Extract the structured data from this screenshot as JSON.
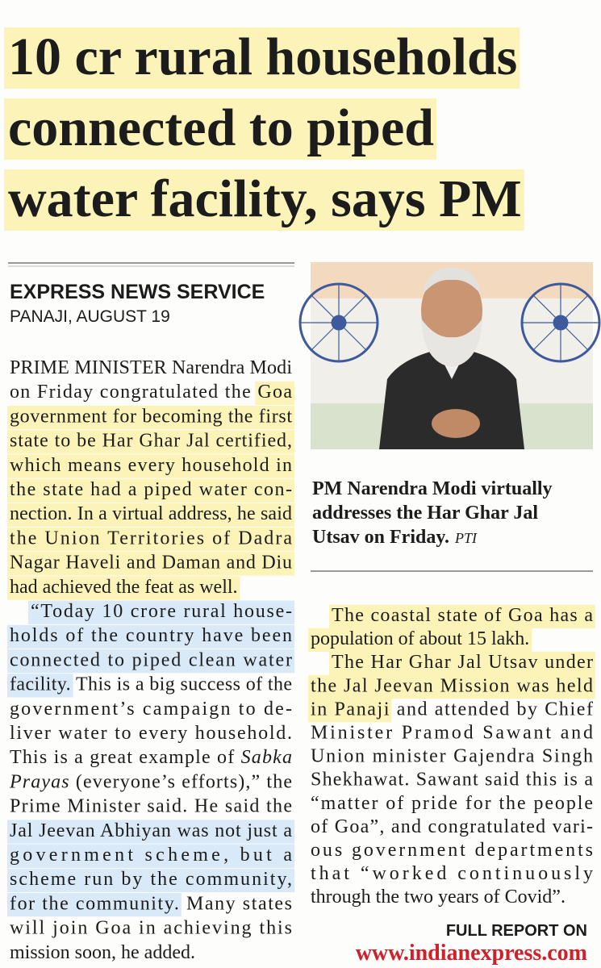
{
  "headline": {
    "lines": [
      "10 cr rural households",
      "connected to piped",
      "water facility, says PM"
    ],
    "highlight": "yellow"
  },
  "byline": "EXPRESS NEWS SERVICE",
  "dateline": "PANAJI, AUGUST 19",
  "body": {
    "left": [
      {
        "indent": false,
        "lines": [
          [
            {
              "text": "PRIME MINISTER Narendra Modi"
            }
          ],
          [
            {
              "text": "on Friday congratulated the "
            },
            {
              "text": "Goa",
              "highlight": "yellow"
            }
          ],
          [
            {
              "text": "government for becoming the first",
              "highlight": "yellow"
            }
          ],
          [
            {
              "text": "state to be Har Ghar Jal certified,",
              "highlight": "yellow"
            }
          ],
          [
            {
              "text": "which means every household in",
              "highlight": "yellow"
            }
          ],
          [
            {
              "text": "the state had a piped water con-",
              "highlight": "yellow"
            }
          ],
          [
            {
              "text": "nection. In a virtual address, he said",
              "highlight": "yellow"
            }
          ],
          [
            {
              "text": "the Union Territories of Dadra",
              "highlight": "yellow"
            }
          ],
          [
            {
              "text": "Nagar Haveli and Daman and Diu",
              "highlight": "yellow"
            }
          ],
          [
            {
              "text": "had achieved the feat as well.",
              "highlight": "yellow"
            }
          ]
        ]
      },
      {
        "indent": true,
        "lines": [
          [
            {
              "text": "“Today 10 crore rural house-",
              "highlight": "blue"
            }
          ],
          [
            {
              "text": "holds of the country have been",
              "highlight": "blue"
            }
          ],
          [
            {
              "text": "connected to piped clean water",
              "highlight": "blue"
            }
          ],
          [
            {
              "text": "facility.",
              "highlight": "blue"
            },
            {
              "text": " This is a big success of the"
            }
          ],
          [
            {
              "text": "government’s campaign to de-"
            }
          ],
          [
            {
              "text": "liver water to every household."
            }
          ],
          [
            {
              "text": "This is a great example of "
            },
            {
              "text": "Sabka",
              "italic": true
            }
          ],
          [
            {
              "text": "Prayas",
              "italic": true
            },
            {
              "text": " (everyone’s efforts),” the"
            }
          ],
          [
            {
              "text": "Prime Minister said. He said the"
            }
          ],
          [
            {
              "text": "Jal Jeevan Abhiyan was not just a",
              "highlight": "blue"
            }
          ],
          [
            {
              "text": "government scheme, but a",
              "highlight": "blue"
            }
          ],
          [
            {
              "text": "scheme run by the community,",
              "highlight": "blue"
            }
          ],
          [
            {
              "text": "for the community.",
              "highlight": "blue"
            },
            {
              "text": " Many states"
            }
          ],
          [
            {
              "text": "will join Goa in achieving this"
            }
          ],
          [
            {
              "text": "mission soon, he added."
            }
          ]
        ]
      }
    ],
    "right": [
      {
        "indent": true,
        "lines": [
          [
            {
              "text": "The coastal state of Goa has a",
              "highlight": "yellow"
            }
          ],
          [
            {
              "text": "population of about 15 lakh.",
              "highlight": "yellow"
            }
          ]
        ]
      },
      {
        "indent": true,
        "lines": [
          [
            {
              "text": "The Har Ghar Jal Utsav under",
              "highlight": "yellow"
            }
          ],
          [
            {
              "text": "the Jal Jeevan Mission was held",
              "highlight": "yellow"
            }
          ],
          [
            {
              "text": "in Panaji",
              "highlight": "yellow"
            },
            {
              "text": " and attended by Chief"
            }
          ],
          [
            {
              "text": "Minister Pramod Sawant and"
            }
          ],
          [
            {
              "text": "Union minister Gajendra Singh"
            }
          ],
          [
            {
              "text": "Shekhawat. Sawant said this is a"
            }
          ],
          [
            {
              "text": "“matter of pride for the people"
            }
          ],
          [
            {
              "text": "of Goa”, and congratulated vari-"
            }
          ],
          [
            {
              "text": "ous government departments"
            }
          ],
          [
            {
              "text": "that “worked continuously"
            }
          ],
          [
            {
              "text": "through the two years of Covid”."
            }
          ]
        ]
      }
    ]
  },
  "photo": {
    "caption": [
      "PM Narendra Modi virtually",
      "addresses the Har Ghar Jal",
      "Utsav on Friday."
    ],
    "credit": "PTI"
  },
  "footer": {
    "label": "FULL REPORT ON",
    "url": "www.indianexpress.com"
  }
}
